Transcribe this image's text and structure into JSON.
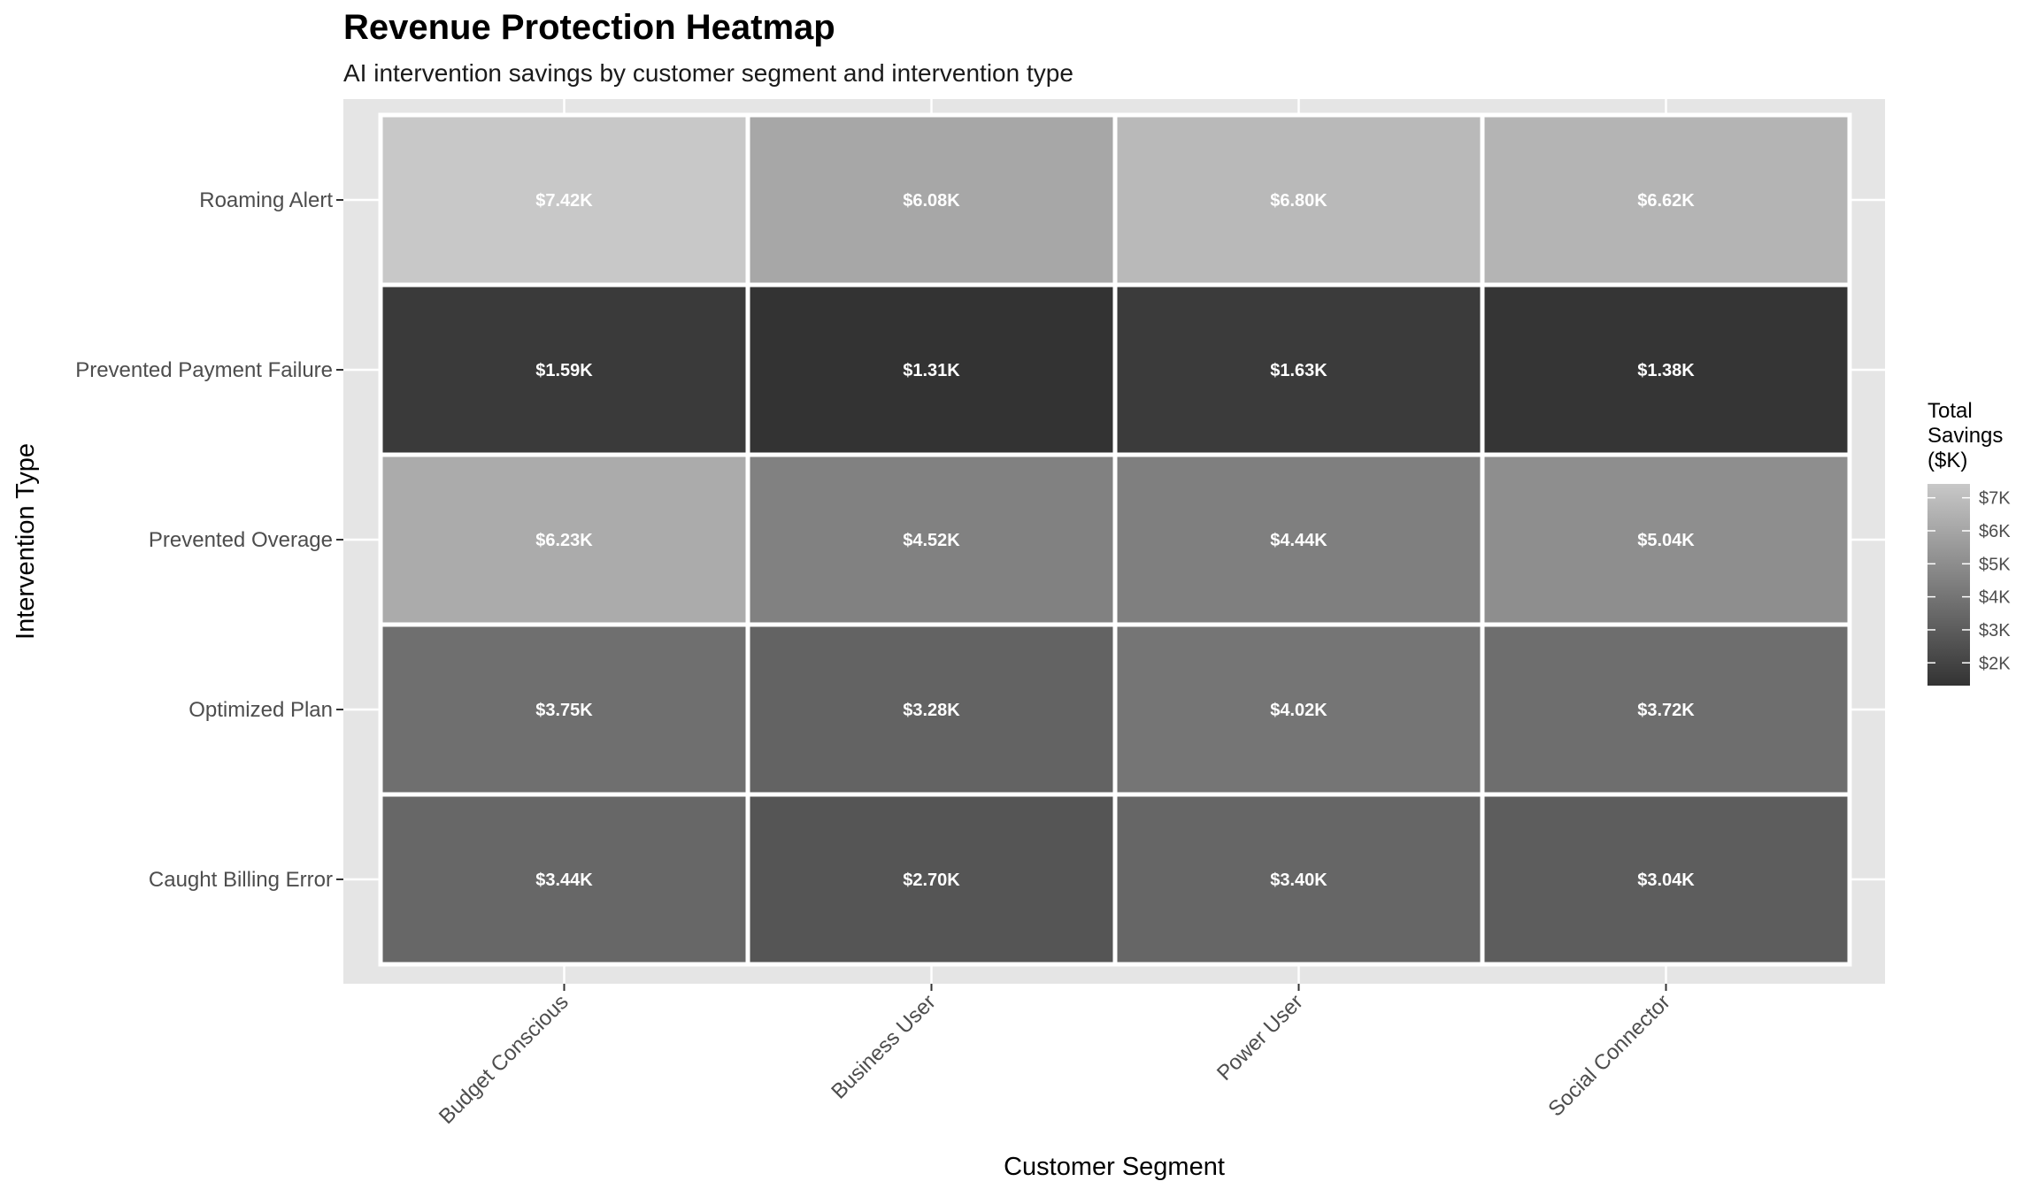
{
  "chart_data": {
    "type": "heatmap",
    "title": "Revenue Protection Heatmap",
    "subtitle": "AI intervention savings by customer segment and intervention type",
    "xlabel": "Customer Segment",
    "ylabel": "Intervention Type",
    "x_categories": [
      "Budget Conscious",
      "Business User",
      "Power User",
      "Social Connector"
    ],
    "y_categories": [
      "Roaming Alert",
      "Prevented Payment Failure",
      "Prevented Overage",
      "Optimized Plan",
      "Caught Billing Error"
    ],
    "values": [
      [
        7.42,
        6.08,
        6.8,
        6.62
      ],
      [
        1.59,
        1.31,
        1.63,
        1.38
      ],
      [
        6.23,
        4.52,
        4.44,
        5.04
      ],
      [
        3.75,
        3.28,
        4.02,
        3.72
      ],
      [
        3.44,
        2.7,
        3.4,
        3.04
      ]
    ],
    "cell_labels": [
      [
        "$7.42K",
        "$6.08K",
        "$6.80K",
        "$6.62K"
      ],
      [
        "$1.59K",
        "$1.31K",
        "$1.63K",
        "$1.38K"
      ],
      [
        "$6.23K",
        "$4.52K",
        "$4.44K",
        "$5.04K"
      ],
      [
        "$3.75K",
        "$3.28K",
        "$4.02K",
        "$3.72K"
      ],
      [
        "$3.44K",
        "$2.70K",
        "$3.40K",
        "$3.04K"
      ]
    ],
    "legend": {
      "title_lines": [
        "Total",
        "Savings",
        "($K)"
      ],
      "ticks": [
        2,
        3,
        4,
        5,
        6,
        7
      ],
      "tick_labels": [
        "$2K",
        "$3K",
        "$4K",
        "$5K",
        "$6K",
        "$7K"
      ],
      "range": [
        1.31,
        7.42
      ],
      "low_color": "#333333",
      "high_color": "#c8c8c8",
      "placement": "right"
    },
    "panel_background": "#e5e5e5",
    "grid": true
  }
}
